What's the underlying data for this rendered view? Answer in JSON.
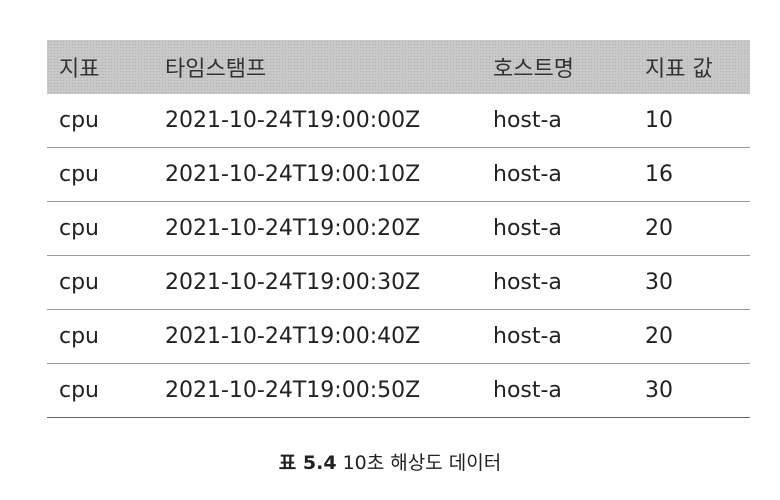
{
  "table": {
    "headers": [
      "지표",
      "타임스탬프",
      "호스트명",
      "지표 값"
    ],
    "rows": [
      [
        "cpu",
        "2021-10-24T19:00:00Z",
        "host-a",
        "10"
      ],
      [
        "cpu",
        "2021-10-24T19:00:10Z",
        "host-a",
        "16"
      ],
      [
        "cpu",
        "2021-10-24T19:00:20Z",
        "host-a",
        "20"
      ],
      [
        "cpu",
        "2021-10-24T19:00:30Z",
        "host-a",
        "30"
      ],
      [
        "cpu",
        "2021-10-24T19:00:40Z",
        "host-a",
        "20"
      ],
      [
        "cpu",
        "2021-10-24T19:00:50Z",
        "host-a",
        "30"
      ]
    ]
  },
  "caption": {
    "number": "표 5.4",
    "text": "10초 해상도 데이터"
  },
  "colors": {
    "header_background": "#c9c9c9",
    "row_rule": "#9a9a9a"
  }
}
